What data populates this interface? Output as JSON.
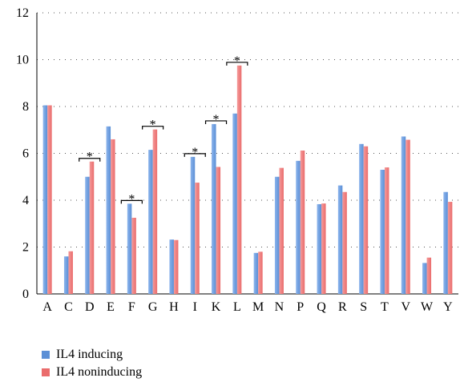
{
  "chart_data": {
    "type": "bar",
    "categories": [
      "A",
      "C",
      "D",
      "E",
      "F",
      "G",
      "H",
      "I",
      "K",
      "L",
      "M",
      "N",
      "P",
      "Q",
      "R",
      "S",
      "T",
      "V",
      "W",
      "Y"
    ],
    "series": [
      {
        "name": "IL4 inducing",
        "color": "#5b8fd6",
        "values": [
          8.05,
          1.6,
          5.0,
          7.15,
          3.85,
          6.15,
          2.32,
          5.85,
          7.25,
          7.7,
          1.75,
          5.0,
          5.68,
          3.83,
          4.63,
          6.4,
          5.3,
          6.72,
          1.32,
          4.35
        ]
      },
      {
        "name": "IL4 noninducing",
        "color": "#ea6c6c",
        "values": [
          8.05,
          1.82,
          5.65,
          6.6,
          3.25,
          7.02,
          2.3,
          4.75,
          5.42,
          9.75,
          1.8,
          5.38,
          6.12,
          3.86,
          4.35,
          6.3,
          5.4,
          6.58,
          1.55,
          3.93
        ]
      }
    ],
    "y_ticks": [
      "0",
      "2",
      "4",
      "6",
      "8",
      "10",
      "12"
    ],
    "ylim": [
      0,
      12
    ],
    "grid": "dotted horizontal",
    "significance": [
      {
        "category": "D",
        "label": "*"
      },
      {
        "category": "F",
        "label": "*"
      },
      {
        "category": "G",
        "label": "*"
      },
      {
        "category": "I",
        "label": "*"
      },
      {
        "category": "K",
        "label": "*"
      },
      {
        "category": "L",
        "label": "*"
      }
    ],
    "legend_position": "bottom-left"
  }
}
